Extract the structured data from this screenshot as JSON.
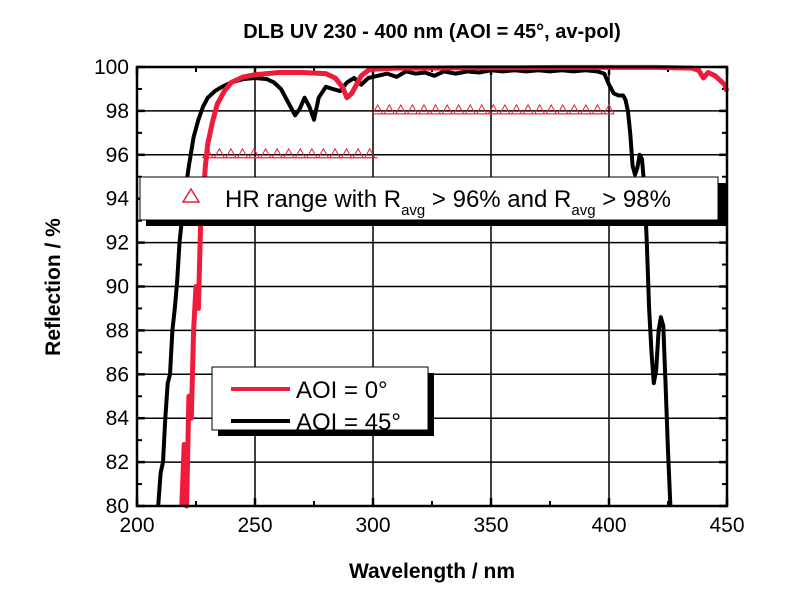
{
  "chart_data": {
    "type": "line",
    "title": "DLB UV 230 - 400 nm (AOI = 45°, av-pol)",
    "xlabel": "Wavelength / nm",
    "ylabel": "Reflection / %",
    "xlim": [
      200,
      450
    ],
    "ylim": [
      80,
      100
    ],
    "xticks": [
      200,
      250,
      300,
      350,
      400,
      450
    ],
    "yticks": [
      80,
      82,
      84,
      86,
      88,
      90,
      92,
      94,
      96,
      98,
      100
    ],
    "grid": true,
    "colors": {
      "aoi0": "#ee1c3a",
      "aoi45": "#000000",
      "marker": "#ee1c3a"
    },
    "series": [
      {
        "name": "AOI = 0°",
        "x": [
          219,
          220,
          221,
          222,
          223,
          224,
          225,
          226,
          227,
          228,
          229,
          230,
          232,
          234,
          237,
          240,
          245,
          250,
          260,
          270,
          280,
          284,
          287,
          289,
          291,
          293,
          295,
          298,
          300,
          310,
          320,
          340,
          360,
          380,
          400,
          420,
          435,
          438,
          440,
          442,
          445,
          447,
          449,
          450
        ],
        "y": [
          80,
          82.8,
          80,
          85,
          84,
          88,
          90,
          89,
          93,
          94,
          95.5,
          96.5,
          97.5,
          98.3,
          98.9,
          99.3,
          99.55,
          99.65,
          99.75,
          99.75,
          99.7,
          99.5,
          99.1,
          98.6,
          98.8,
          99.2,
          99.6,
          99.85,
          99.9,
          99.95,
          99.95,
          99.97,
          99.97,
          99.98,
          99.98,
          99.98,
          99.95,
          99.85,
          99.5,
          99.75,
          99.6,
          99.4,
          99.2,
          98.9
        ]
      },
      {
        "name": "AOI = 45°",
        "x": [
          209,
          210,
          211,
          212,
          213,
          214,
          215,
          216,
          217,
          218,
          219,
          220,
          222,
          224,
          226,
          228,
          230,
          233,
          236,
          240,
          245,
          250,
          255,
          258,
          261,
          264,
          267,
          269,
          271,
          273,
          275,
          277,
          280,
          283,
          286,
          289,
          292,
          295,
          298,
          302,
          306,
          310,
          314,
          318,
          322,
          326,
          330,
          335,
          340,
          345,
          350,
          355,
          360,
          365,
          370,
          375,
          380,
          385,
          390,
          395,
          398,
          400,
          402,
          404,
          406,
          407,
          408,
          409,
          410,
          411,
          412,
          413,
          414,
          415,
          416,
          417,
          418,
          419,
          420,
          421,
          422,
          423,
          424,
          425,
          426
        ],
        "y": [
          80,
          81.5,
          82,
          84,
          85.6,
          86,
          88,
          89,
          90.2,
          92,
          93,
          94,
          95.5,
          96.8,
          97.6,
          98.2,
          98.6,
          98.9,
          99.1,
          99.3,
          99.45,
          99.5,
          99.45,
          99.3,
          99.0,
          98.4,
          97.8,
          98.1,
          98.6,
          98.2,
          97.6,
          98.6,
          99.1,
          99.0,
          98.9,
          99.3,
          99.5,
          99.2,
          99.5,
          99.6,
          99.7,
          99.55,
          99.8,
          99.7,
          99.75,
          99.6,
          99.8,
          99.7,
          99.8,
          99.75,
          99.85,
          99.8,
          99.85,
          99.8,
          99.85,
          99.8,
          99.85,
          99.8,
          99.85,
          99.8,
          99.7,
          99.2,
          98.8,
          98.7,
          98.7,
          98.5,
          98.0,
          97.0,
          95.5,
          95.1,
          95.4,
          96.0,
          95.8,
          94.5,
          92.0,
          89,
          87,
          85.6,
          86.2,
          88.0,
          88.6,
          88.2,
          85.5,
          82.5,
          80
        ]
      }
    ],
    "hr_ranges": [
      {
        "from": 230,
        "to": 302,
        "level": 96
      },
      {
        "from": 302,
        "to": 400,
        "level": 98
      }
    ],
    "legend_hr": {
      "prefix": "HR range with R",
      "sub1": "avg",
      "mid": " > 96% and R",
      "sub2": "avg",
      "suffix": " > 98%"
    },
    "legend_placement": "center-left"
  }
}
